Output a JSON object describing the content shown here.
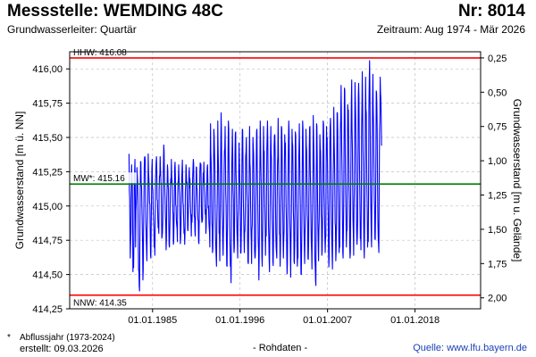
{
  "header": {
    "title": "Messstelle: WEMDING 48C",
    "nr": "Nr: 8014",
    "aquifer": "Grundwasserleiter: Quartär",
    "period": "Zeitraum: Aug 1974 - Mär 2026"
  },
  "footer": {
    "footnote_mark": "*",
    "footnote": "Abfluss­jahr (1973-2024)",
    "created": "erstellt:  09.03.2026",
    "datatype": "- Rohdaten -",
    "source": "Quelle: www.lfu.bayern.de"
  },
  "colors": {
    "series": "#0000ff",
    "hhw": "#ff0000",
    "nnw": "#ff0000",
    "mw": "#008000",
    "grid": "#bfbfbf",
    "frame": "#000000"
  },
  "chart_data": {
    "type": "line",
    "title": "",
    "xlabel": "",
    "ylabel": "Grundwasserstand [m ü. NN]",
    "y2label": "Grundwasserstand [m u. Gelände]",
    "xlim": [
      "1974-08-01",
      "2026-03-31"
    ],
    "ylim": [
      414.25,
      416.125
    ],
    "y2lim": [
      2.08,
      0.205
    ],
    "grid": true,
    "x_ticks": [
      "01.01.1985",
      "01.01.1996",
      "01.01.2007",
      "01.01.2018"
    ],
    "y_ticks": [
      "414,25",
      "414,50",
      "414,75",
      "415,00",
      "415,25",
      "415,50",
      "415,75",
      "416,00"
    ],
    "y2_ticks": [
      "0,25",
      "0,50",
      "0,75",
      "1,00",
      "1,25",
      "1,50",
      "1,75",
      "2,00"
    ],
    "reference_lines": [
      {
        "name": "HHW",
        "label": "HHW: 416.08",
        "value": 416.08
      },
      {
        "name": "MW",
        "label": "MW*: 415.16",
        "value": 415.16
      },
      {
        "name": "NNW",
        "label": "NNW: 414.35",
        "value": 414.35
      }
    ],
    "series": [
      {
        "data_start": "1982-01",
        "values_monthly": [
          415.38,
          415.06,
          414.62,
          414.8,
          415.3,
          415.18,
          414.52,
          414.55,
          415.22,
          415.34,
          414.7,
          415.02,
          415.28,
          415.18,
          414.76,
          414.52,
          414.38,
          415.12,
          415.32,
          415.14,
          414.86,
          414.46,
          414.82,
          415.28,
          415.36,
          415.1,
          414.78,
          414.6,
          414.9,
          415.38,
          415.2,
          415.02,
          414.8,
          414.62,
          415.06,
          415.34,
          415.12,
          414.9,
          414.7,
          414.64,
          415.18,
          415.32,
          415.26,
          415.04,
          414.84,
          414.8,
          415.22,
          415.36,
          415.2,
          414.96,
          414.78,
          414.9,
          415.28,
          415.4,
          415.14,
          414.92,
          414.68,
          415.04,
          415.3,
          415.16,
          414.88,
          414.7,
          414.92,
          415.2,
          415.34,
          415.18,
          414.96,
          414.72,
          414.9,
          415.28,
          415.22,
          415.0,
          414.86,
          414.74,
          415.18,
          415.3,
          415.12,
          414.9,
          414.76,
          415.02,
          415.26,
          415.2,
          415.0,
          414.8,
          414.72,
          415.1,
          415.3,
          415.16,
          414.98,
          414.82,
          415.04,
          415.28,
          415.2,
          414.96,
          414.78,
          414.88,
          415.2,
          415.34,
          415.14,
          414.92,
          414.78,
          415.08,
          415.28,
          415.12,
          414.9,
          414.74,
          414.92,
          415.26,
          415.3,
          415.1,
          414.88,
          414.9,
          415.24,
          415.32,
          415.14,
          414.94,
          414.8,
          415.02,
          415.28,
          415.18,
          415.0,
          414.84,
          414.7,
          415.6,
          415.32,
          414.88,
          414.66,
          414.92,
          415.56,
          415.4,
          414.98,
          414.7,
          414.56,
          415.02,
          415.62,
          415.28,
          414.8,
          414.6,
          415.2,
          415.68,
          415.26,
          414.88,
          414.64,
          414.92,
          415.4,
          415.58,
          415.1,
          414.78,
          414.56,
          415.14,
          415.62,
          415.3,
          414.82,
          414.56,
          414.44,
          415.28,
          415.56,
          415.12,
          414.76,
          414.7,
          415.38,
          415.54,
          415.16,
          414.8,
          414.62,
          414.98,
          415.46,
          415.24,
          414.86,
          414.66,
          415.04,
          415.56,
          415.34,
          414.92,
          414.66,
          414.82,
          415.36,
          415.5,
          415.1,
          414.74,
          414.58,
          415.08,
          415.58,
          415.26,
          414.84,
          414.58,
          414.86,
          415.5,
          415.38,
          414.94,
          414.62,
          414.72,
          415.32,
          415.56,
          415.14,
          414.74,
          414.46,
          415.04,
          415.62,
          415.3,
          414.84,
          414.56,
          414.92,
          415.58,
          415.4,
          414.96,
          414.64,
          414.78,
          415.4,
          415.62,
          415.18,
          414.76,
          414.52,
          415.0,
          415.58,
          415.34,
          414.9,
          414.6,
          414.74,
          415.44,
          415.52,
          415.06,
          414.7,
          414.62,
          415.3,
          415.64,
          415.22,
          414.8,
          414.56,
          414.96,
          415.58,
          415.42,
          414.96,
          414.62,
          414.82,
          415.52,
          415.46,
          415.0,
          414.64,
          414.58,
          415.22,
          415.62,
          415.26,
          414.8,
          414.48,
          414.9,
          415.56,
          415.44,
          414.96,
          414.6,
          414.7,
          415.54,
          415.36,
          414.9,
          414.56,
          414.62,
          415.34,
          415.6,
          415.16,
          414.72,
          414.5,
          414.98,
          415.62,
          415.3,
          414.84,
          414.58,
          414.86,
          415.56,
          415.4,
          414.94,
          414.62,
          414.74,
          415.42,
          415.58,
          415.14,
          414.74,
          414.54,
          415.02,
          415.66,
          415.38,
          414.88,
          414.56,
          414.42,
          415.6,
          415.36,
          414.86,
          414.6,
          414.9,
          415.52,
          415.4,
          414.94,
          414.64,
          414.86,
          415.62,
          415.44,
          414.98,
          414.66,
          414.78,
          415.58,
          415.5,
          415.04,
          414.7,
          414.62,
          415.44,
          415.64,
          415.18,
          414.76,
          414.54,
          415.2,
          415.72,
          415.36,
          414.88,
          414.6,
          414.88,
          415.68,
          415.54,
          415.02,
          414.66,
          414.7,
          415.56,
          415.88,
          415.4,
          414.92,
          414.62,
          415.08,
          415.86,
          415.62,
          415.06,
          414.7,
          414.82,
          415.74,
          415.7,
          415.14,
          414.72,
          414.66,
          415.48,
          415.92,
          415.42,
          414.9,
          414.64,
          415.12,
          415.9,
          415.66,
          415.1,
          414.72,
          414.9,
          415.8,
          415.78,
          415.2,
          414.76,
          414.68,
          415.56,
          415.98,
          415.46,
          414.94,
          414.62,
          415.1,
          415.94,
          415.68,
          415.12,
          414.7,
          414.74,
          415.72,
          416.06,
          415.5,
          414.96,
          414.7,
          415.4,
          415.96,
          415.58,
          415.06,
          414.76,
          414.96,
          415.84,
          415.74,
          415.18,
          414.78,
          414.66,
          415.52,
          415.94,
          415.78,
          415.44
        ]
      }
    ]
  }
}
